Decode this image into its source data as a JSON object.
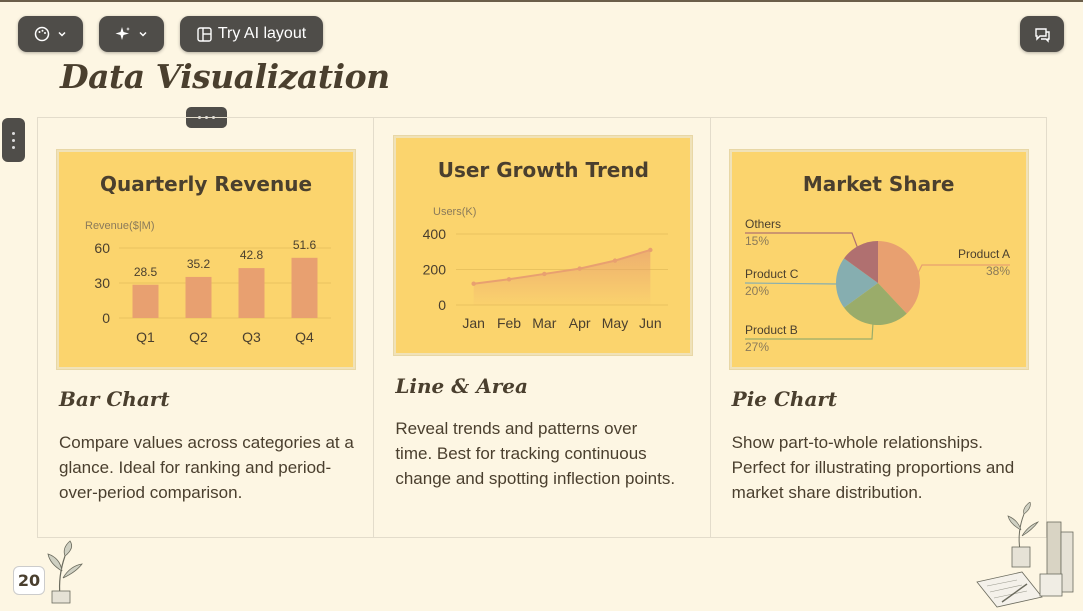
{
  "toolbar": {
    "layout_label": "Try AI layout"
  },
  "page": {
    "title": "Data Visualization",
    "number": "20"
  },
  "cards": [
    {
      "heading": "Bar Chart",
      "description": "Compare values across categories at a glance. Ideal for ranking and period-over-period comparison."
    },
    {
      "heading": "Line & Area",
      "description": "Reveal trends and patterns over time. Best for tracking continuous change and spotting inflection points."
    },
    {
      "heading": "Pie Chart",
      "description": "Show part-to-whole relationships. Perfect for illustrating proportions and market share distribution."
    }
  ],
  "chart_data": [
    {
      "type": "bar",
      "title": "Quarterly Revenue",
      "ylabel": "Revenue($|M)",
      "categories": [
        "Q1",
        "Q2",
        "Q3",
        "Q4"
      ],
      "values": [
        28.5,
        35.2,
        42.8,
        51.6
      ],
      "yticks": [
        0,
        30,
        60
      ],
      "ylim": [
        0,
        60
      ],
      "color": "#e8a070"
    },
    {
      "type": "area",
      "title": "User Growth Trend",
      "ylabel": "Users(K)",
      "categories": [
        "Jan",
        "Feb",
        "Mar",
        "Apr",
        "May",
        "Jun"
      ],
      "values": [
        120,
        145,
        175,
        205,
        250,
        310
      ],
      "yticks": [
        0,
        200,
        400
      ],
      "ylim": [
        0,
        400
      ],
      "color": "#e8a070"
    },
    {
      "type": "pie",
      "title": "Market Share",
      "slices": [
        {
          "name": "Product A",
          "value": 38,
          "label": "38%",
          "color": "#e8a070"
        },
        {
          "name": "Product B",
          "value": 27,
          "label": "27%",
          "color": "#9aac6a"
        },
        {
          "name": "Product C",
          "value": 20,
          "label": "20%",
          "color": "#86aeb0"
        },
        {
          "name": "Others",
          "value": 15,
          "label": "15%",
          "color": "#b07070"
        }
      ]
    }
  ]
}
